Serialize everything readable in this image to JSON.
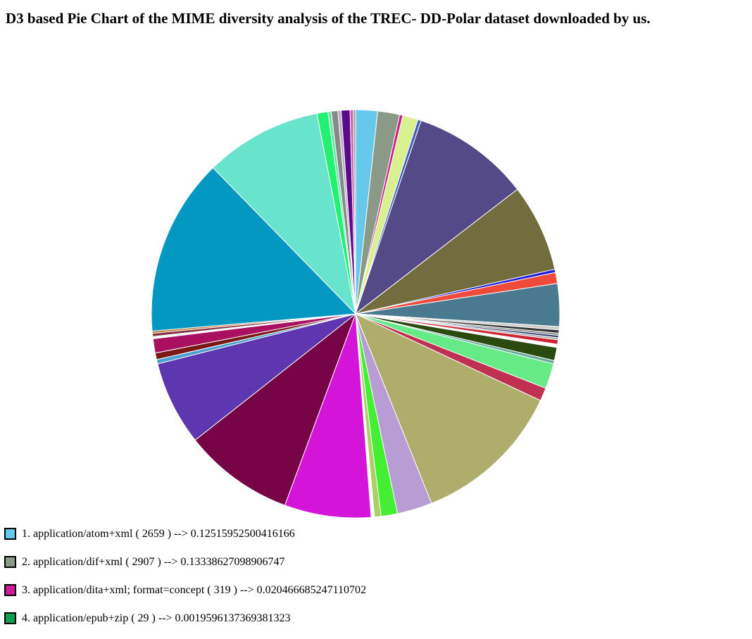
{
  "page": {
    "title": "D3 based Pie Chart of the MIME diversity analysis of the TREC- DD-Polar dataset downloaded by us."
  },
  "chart_data": {
    "type": "pie",
    "title": "D3 based Pie Chart of the MIME diversity analysis of the TREC- DD-Polar dataset downloaded by us.",
    "start": "top",
    "direction": "clockwise",
    "slices": [
      {
        "color": "#66c8ea",
        "value": 2.0
      },
      {
        "color": "#8a9a86",
        "value": 2.0
      },
      {
        "color": "#cc2288",
        "value": 0.3
      },
      {
        "color": "#d8f090",
        "value": 1.4
      },
      {
        "color": "#4060c0",
        "value": 0.3
      },
      {
        "color": "#554a88",
        "value": 10.8
      },
      {
        "color": "#726d3e",
        "value": 8.0
      },
      {
        "color": "#2222dd",
        "value": 0.3
      },
      {
        "color": "#f04a3a",
        "value": 1.0
      },
      {
        "color": "#4a7a90",
        "value": 3.9
      },
      {
        "color": "#cccccc",
        "value": 0.3
      },
      {
        "color": "#333333",
        "value": 0.3
      },
      {
        "color": "#888888",
        "value": 0.2
      },
      {
        "color": "#223366",
        "value": 0.2
      },
      {
        "color": "#aaaaaa",
        "value": 0.2
      },
      {
        "color": "#cc2233",
        "value": 0.4
      },
      {
        "color": "#ffffff",
        "value": 0.3
      },
      {
        "color": "#2a4a10",
        "value": 1.2
      },
      {
        "color": "#66aa99",
        "value": 0.3
      },
      {
        "color": "#66ea88",
        "value": 2.3
      },
      {
        "color": "#c03050",
        "value": 1.2
      },
      {
        "color": "#aead6c",
        "value": 13.8
      },
      {
        "color": "#b89cd4",
        "value": 3.2
      },
      {
        "color": "#44ee33",
        "value": 1.5
      },
      {
        "color": "#aad066",
        "value": 0.6
      },
      {
        "color": "#ffffff",
        "value": 0.3
      },
      {
        "color": "#d414d9",
        "value": 7.9
      },
      {
        "color": "#780448",
        "value": 10.1
      },
      {
        "color": "#5e36b0",
        "value": 7.7
      },
      {
        "color": "#4aa0d0",
        "value": 0.4
      },
      {
        "color": "#7a1818",
        "value": 0.6
      },
      {
        "color": "#aa1060",
        "value": 1.3
      },
      {
        "color": "#ffffff",
        "value": 0.2
      },
      {
        "color": "#883344",
        "value": 0.3
      },
      {
        "color": "#c07a30",
        "value": 0.2
      },
      {
        "color": "#0398c2",
        "value": 16.2
      },
      {
        "color": "#68e4cc",
        "value": 10.7
      },
      {
        "color": "#22f070",
        "value": 1.0
      },
      {
        "color": "#66eaa8",
        "value": 0.3
      },
      {
        "color": "#888888",
        "value": 0.6
      },
      {
        "color": "#bbaacc",
        "value": 0.3
      },
      {
        "color": "#5a0a8a",
        "value": 0.8
      },
      {
        "color": "#cc66aa",
        "value": 0.3
      },
      {
        "color": "#999999",
        "value": 0.2
      }
    ],
    "legend": [
      {
        "label": "1. application/atom+xml ( 2659 ) --> 0.12515952500416166",
        "color": "#66c8ea"
      },
      {
        "label": "2. application/dif+xml ( 2907 ) --> 0.13338627098906747",
        "color": "#8a9a86"
      },
      {
        "label": "3. application/dita+xml; format=concept ( 319 ) --> 0.020466685247110702",
        "color": "#cc1a99"
      },
      {
        "label": "4. application/epub+zip ( 29 ) --> 0.0019596137369381323",
        "color": "#10a050"
      }
    ]
  }
}
